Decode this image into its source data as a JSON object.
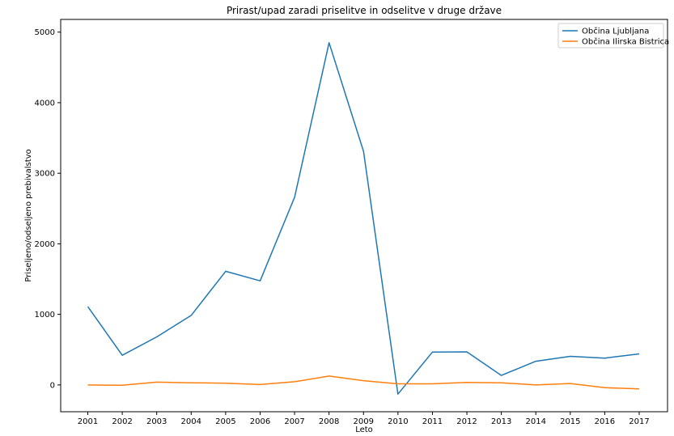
{
  "chart_data": {
    "type": "line",
    "title": "Prirast/upad zaradi priselitve in odselitve v druge države",
    "xlabel": "Leto",
    "ylabel": "Priseljeno/odseljeno prebivalstvo",
    "categories": [
      "2001",
      "2002",
      "2003",
      "2004",
      "2005",
      "2006",
      "2007",
      "2008",
      "2009",
      "2010",
      "2011",
      "2012",
      "2013",
      "2014",
      "2015",
      "2016",
      "2017"
    ],
    "series": [
      {
        "name": "Občina Ljubljana",
        "color": "#1f77b4",
        "values": [
          1110,
          420,
          680,
          985,
          1610,
          1475,
          2660,
          4850,
          3310,
          -130,
          465,
          468,
          135,
          335,
          405,
          380,
          440
        ]
      },
      {
        "name": "Občina Ilirska Bistrica",
        "color": "#ff7f0e",
        "values": [
          0,
          -5,
          40,
          30,
          25,
          5,
          45,
          125,
          60,
          15,
          15,
          35,
          30,
          0,
          20,
          -40,
          -55
        ]
      }
    ],
    "ylim": [
      -380,
      5180
    ],
    "yticks": [
      0,
      1000,
      2000,
      3000,
      4000,
      5000
    ],
    "grid": false,
    "legend": "top-right"
  }
}
